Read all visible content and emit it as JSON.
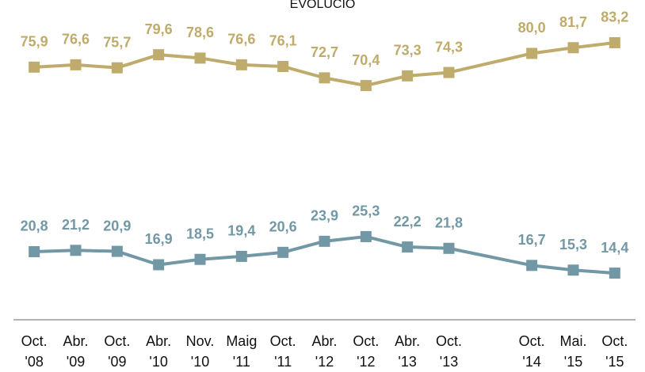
{
  "chart_data": {
    "type": "line",
    "title": "EVOLUCIÓ",
    "categories": [
      "Oct. '08",
      "Abr. '09",
      "Oct. '09",
      "Abr. '10",
      "Nov. '10",
      "Maig '11",
      "Oct. '11",
      "Abr. '12",
      "Oct. '12",
      "Abr. '13",
      "Oct. '13",
      null,
      "Oct. '14",
      "Mai. '15",
      "Oct. '15"
    ],
    "series": [
      {
        "name": null,
        "color": "#bfab6b",
        "values": [
          75.9,
          76.6,
          75.7,
          79.6,
          78.6,
          76.6,
          76.1,
          72.7,
          70.4,
          73.3,
          74.3,
          null,
          80.0,
          81.7,
          83.2
        ],
        "value_labels": [
          "75,9",
          "76,6",
          "75,7",
          "79,6",
          "78,6",
          "76,6",
          "76,1",
          "72,7",
          "70,4",
          "73,3",
          "74,3",
          null,
          "80,0",
          "81,7",
          "83,2"
        ]
      },
      {
        "name": null,
        "color": "#7298a6",
        "values": [
          20.8,
          21.2,
          20.9,
          16.9,
          18.5,
          19.4,
          20.6,
          23.9,
          25.3,
          22.2,
          21.8,
          null,
          16.7,
          15.3,
          14.4
        ],
        "value_labels": [
          "20,8",
          "21,2",
          "20,9",
          "16,9",
          "18,5",
          "19,4",
          "20,6",
          "23,9",
          "25,3",
          "22,2",
          "21,8",
          null,
          "16,7",
          "15,3",
          "14,4"
        ]
      }
    ],
    "ylim": [
      0,
      95
    ]
  }
}
